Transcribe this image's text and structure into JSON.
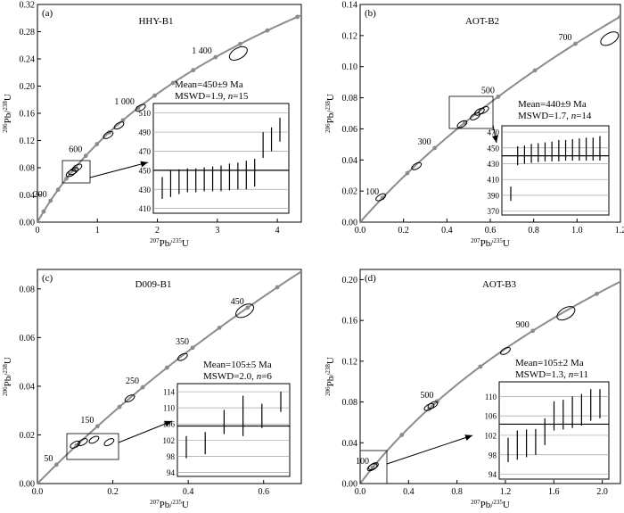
{
  "chart_data": [
    {
      "panel_label": "(a)",
      "type": "scatter",
      "sample": "HHY-B1",
      "xlabel_sup": "207",
      "xlabel_main": "Pb/",
      "xlabel_sup2": "235",
      "xlabel_end": "U",
      "ylabel_sup": "206",
      "ylabel_main": "Pb/",
      "ylabel_sup2": "238",
      "ylabel_end": "U",
      "xlim": [
        0,
        4.4
      ],
      "ylim": [
        0,
        0.32
      ],
      "xticks": [
        "0",
        "1",
        "2",
        "3",
        "4"
      ],
      "xtickvals": [
        0,
        1,
        2,
        3,
        4
      ],
      "yticks": [
        "0.00",
        "0.04",
        "0.08",
        "0.12",
        "0.16",
        "0.20",
        "0.24",
        "0.28",
        "0.32"
      ],
      "ytickvals": [
        0,
        0.04,
        0.08,
        0.12,
        0.16,
        0.2,
        0.24,
        0.28,
        0.32
      ],
      "concordia_labels": [
        {
          "text": "200",
          "age": 200
        },
        {
          "text": "600",
          "age": 600
        },
        {
          "text": "1 000",
          "age": 1000
        },
        {
          "text": "1 400",
          "age": 1400
        }
      ],
      "concordia_points": [
        100,
        200,
        300,
        400,
        500,
        600,
        700,
        800,
        900,
        1000,
        1100,
        1200,
        1300,
        1400,
        1500,
        1600,
        1700
      ],
      "ellipses": [
        {
          "x": 0.56,
          "y": 0.072
        },
        {
          "x": 0.6,
          "y": 0.075
        },
        {
          "x": 0.66,
          "y": 0.08
        },
        {
          "x": 1.18,
          "y": 0.128
        },
        {
          "x": 1.36,
          "y": 0.142
        },
        {
          "x": 1.72,
          "y": 0.168
        },
        {
          "x": 3.35,
          "y": 0.248
        }
      ],
      "mean_text": "Mean=450±9 Ma",
      "mswd_text": "MSWD=1.9, ",
      "n_text": "n",
      "n_val": "=15",
      "inset": {
        "yticks": [
          "410",
          "430",
          "450",
          "470",
          "490",
          "510"
        ],
        "ylim": [
          405,
          520
        ],
        "mean": 450,
        "bars": [
          [
            420,
            443
          ],
          [
            422,
            450
          ],
          [
            425,
            451
          ],
          [
            427,
            452
          ],
          [
            427,
            452
          ],
          [
            428,
            453
          ],
          [
            428,
            454
          ],
          [
            428,
            455
          ],
          [
            429,
            457
          ],
          [
            430,
            458
          ],
          [
            430,
            460
          ],
          [
            433,
            462
          ],
          [
            463,
            490
          ],
          [
            470,
            495
          ],
          [
            480,
            505
          ]
        ]
      }
    },
    {
      "panel_label": "(b)",
      "type": "scatter",
      "sample": "AOT-B2",
      "xlabel_sup": "207",
      "xlabel_main": "Pb/",
      "xlabel_sup2": "235",
      "xlabel_end": "U",
      "ylabel_sup": "206",
      "ylabel_main": "Pb/",
      "ylabel_sup2": "238",
      "ylabel_end": "U",
      "xlim": [
        0,
        1.2
      ],
      "ylim": [
        0,
        0.14
      ],
      "xticks": [
        "0.0",
        "0.2",
        "0.4",
        "0.6",
        "0.8",
        "1.0",
        "1.2"
      ],
      "xtickvals": [
        0,
        0.2,
        0.4,
        0.6,
        0.8,
        1.0,
        1.2
      ],
      "yticks": [
        "0.00",
        "0.02",
        "0.04",
        "0.06",
        "0.08",
        "0.10",
        "0.12",
        "0.14"
      ],
      "ytickvals": [
        0,
        0.02,
        0.04,
        0.06,
        0.08,
        0.1,
        0.12,
        0.14
      ],
      "concordia_labels": [
        {
          "text": "100",
          "age": 100
        },
        {
          "text": "300",
          "age": 300
        },
        {
          "text": "500",
          "age": 500
        },
        {
          "text": "700",
          "age": 700
        }
      ],
      "concordia_points": [
        100,
        200,
        300,
        400,
        500,
        600,
        700,
        800
      ],
      "ellipses": [
        {
          "x": 0.095,
          "y": 0.016
        },
        {
          "x": 0.26,
          "y": 0.036
        },
        {
          "x": 0.47,
          "y": 0.063
        },
        {
          "x": 0.53,
          "y": 0.068
        },
        {
          "x": 0.55,
          "y": 0.071
        },
        {
          "x": 0.57,
          "y": 0.072
        },
        {
          "x": 1.15,
          "y": 0.118
        }
      ],
      "mean_text": "Mean=440±9 Ma",
      "mswd_text": "MSWD=1.7, ",
      "n_text": "n",
      "n_val": "=14",
      "inset": {
        "yticks": [
          "370",
          "390",
          "410",
          "430",
          "450",
          "470"
        ],
        "ylim": [
          365,
          478
        ],
        "mean": 440,
        "bars": [
          [
            383,
            401
          ],
          [
            428,
            452
          ],
          [
            430,
            453
          ],
          [
            431,
            455
          ],
          [
            432,
            456
          ],
          [
            433,
            457
          ],
          [
            433,
            458
          ],
          [
            433,
            460
          ],
          [
            434,
            460
          ],
          [
            434,
            461
          ],
          [
            434,
            462
          ],
          [
            434,
            463
          ],
          [
            434,
            463
          ],
          [
            434,
            465
          ]
        ]
      }
    },
    {
      "panel_label": "(c)",
      "type": "scatter",
      "sample": "D009-B1",
      "xlabel_sup": "207",
      "xlabel_main": "Pb/",
      "xlabel_sup2": "235",
      "xlabel_end": "U",
      "ylabel_sup": "206",
      "ylabel_main": "Pb/",
      "ylabel_sup2": "238",
      "ylabel_end": "U",
      "xlim": [
        0,
        0.7
      ],
      "ylim": [
        0,
        0.088
      ],
      "xticks": [
        "0.0",
        "0.2",
        "0.4",
        "0.6"
      ],
      "xtickvals": [
        0,
        0.2,
        0.4,
        0.6
      ],
      "yticks": [
        "0.00",
        "0.02",
        "0.04",
        "0.06",
        "0.08"
      ],
      "ytickvals": [
        0,
        0.02,
        0.04,
        0.06,
        0.08
      ],
      "concordia_labels": [
        {
          "text": "50",
          "age": 50
        },
        {
          "text": "150",
          "age": 150
        },
        {
          "text": "250",
          "age": 250
        },
        {
          "text": "350",
          "age": 350
        },
        {
          "text": "450",
          "age": 450
        }
      ],
      "concordia_points": [
        50,
        100,
        150,
        200,
        250,
        300,
        350,
        400,
        450,
        500,
        550
      ],
      "ellipses": [
        {
          "x": 0.1,
          "y": 0.016
        },
        {
          "x": 0.12,
          "y": 0.017
        },
        {
          "x": 0.15,
          "y": 0.018
        },
        {
          "x": 0.19,
          "y": 0.017
        },
        {
          "x": 0.245,
          "y": 0.035
        },
        {
          "x": 0.385,
          "y": 0.052
        },
        {
          "x": 0.55,
          "y": 0.071
        }
      ],
      "mean_text": "Mean=105±5 Ma",
      "mswd_text": "MSWD=2.0, ",
      "n_text": "n",
      "n_val": "=6",
      "inset": {
        "yticks": [
          "94",
          "98",
          "102",
          "106",
          "110",
          "114"
        ],
        "ylim": [
          93,
          116
        ],
        "mean": 105.5,
        "bars": [
          [
            97.5,
            103
          ],
          [
            98.5,
            104
          ],
          [
            103.5,
            109.5
          ],
          [
            103,
            113
          ],
          [
            105,
            111
          ],
          [
            109,
            114
          ]
        ]
      }
    },
    {
      "panel_label": "(d)",
      "type": "scatter",
      "sample": "AOT-B3",
      "xlabel_sup": "207",
      "xlabel_main": "Pb/",
      "xlabel_sup2": "235",
      "xlabel_end": "U",
      "ylabel_sup": "206",
      "ylabel_main": "Pb/",
      "ylabel_sup2": "238",
      "ylabel_end": "U",
      "xlim": [
        0,
        2.15
      ],
      "ylim": [
        0,
        0.21
      ],
      "xticks": [
        "0.0",
        "0.4",
        "0.8",
        "1.2",
        "1.6",
        "2.0"
      ],
      "xtickvals": [
        0,
        0.4,
        0.8,
        1.2,
        1.6,
        2.0
      ],
      "yticks": [
        "0.00",
        "0.04",
        "0.08",
        "0.12",
        "0.16",
        "0.20"
      ],
      "ytickvals": [
        0,
        0.04,
        0.08,
        0.12,
        0.16,
        0.2
      ],
      "concordia_labels": [
        {
          "text": "100",
          "age": 100
        },
        {
          "text": "500",
          "age": 500
        },
        {
          "text": "900",
          "age": 900
        }
      ],
      "concordia_points": [
        100,
        300,
        500,
        700,
        900,
        1100
      ],
      "ellipses": [
        {
          "x": 0.1,
          "y": 0.016
        },
        {
          "x": 0.11,
          "y": 0.017
        },
        {
          "x": 0.57,
          "y": 0.075
        },
        {
          "x": 0.6,
          "y": 0.077
        },
        {
          "x": 1.2,
          "y": 0.13
        },
        {
          "x": 1.7,
          "y": 0.167
        }
      ],
      "mean_text": "Mean=105±2 Ma",
      "mswd_text": "MSWD=1.3, ",
      "n_text": "n",
      "n_val": "=11",
      "inset": {
        "yticks": [
          "94",
          "98",
          "102",
          "106",
          "110"
        ],
        "ylim": [
          93,
          113
        ],
        "mean": 104.3,
        "bars": [
          [
            96.5,
            101.5
          ],
          [
            97,
            103
          ],
          [
            97.5,
            103.2
          ],
          [
            98,
            103.3
          ],
          [
            100,
            105.5
          ],
          [
            103,
            109
          ],
          [
            103.2,
            109.3
          ],
          [
            103.5,
            110
          ],
          [
            104,
            110.5
          ],
          [
            105,
            111.5
          ],
          [
            105.5,
            111.5
          ]
        ]
      }
    }
  ]
}
